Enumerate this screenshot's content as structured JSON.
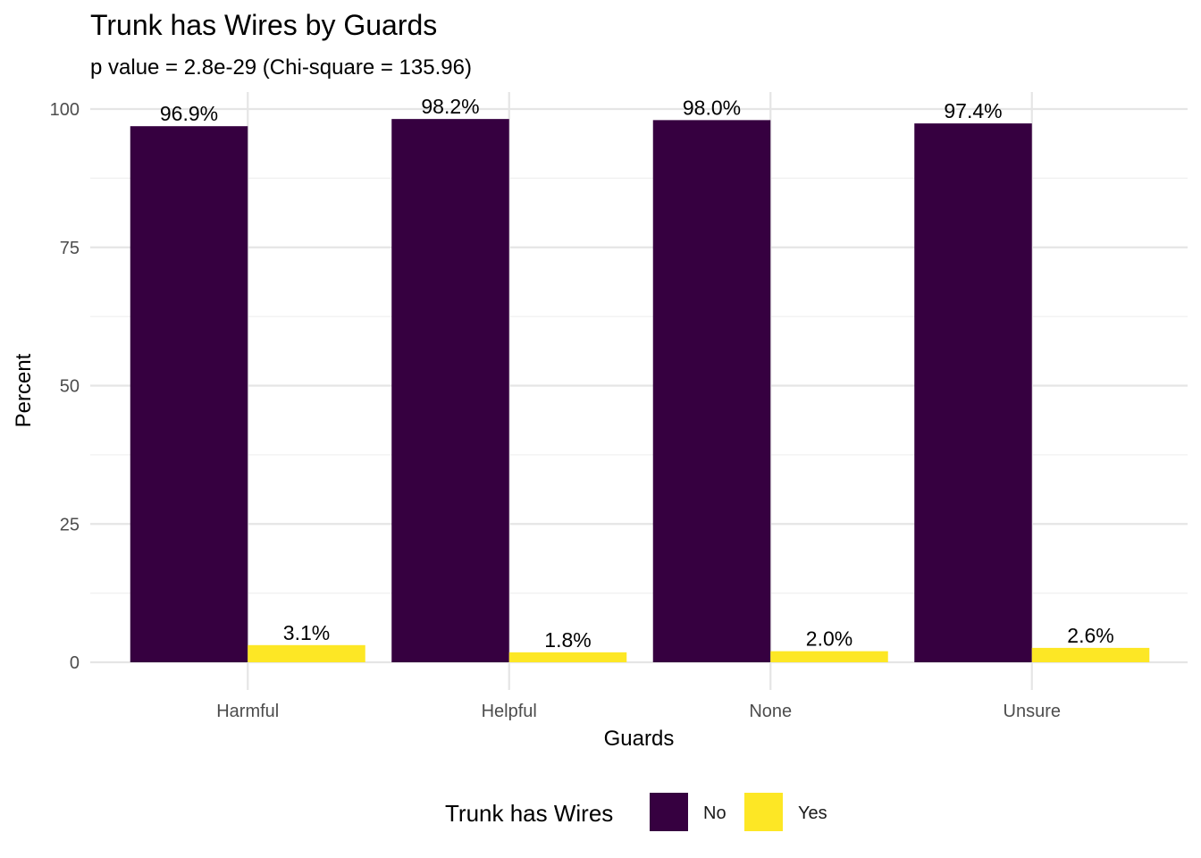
{
  "chart_data": {
    "type": "bar",
    "title": "Trunk has Wires by Guards",
    "subtitle": "p value = 2.8e-29 (Chi-square = 135.96)",
    "xlabel": "Guards",
    "ylabel": "Percent",
    "categories": [
      "Harmful",
      "Helpful",
      "None",
      "Unsure"
    ],
    "series": [
      {
        "name": "No",
        "color": "#360040",
        "values": [
          96.9,
          98.2,
          98.0,
          97.4
        ],
        "labels": [
          "96.9%",
          "98.2%",
          "98.0%",
          "97.4%"
        ]
      },
      {
        "name": "Yes",
        "color": "#fde725",
        "values": [
          3.1,
          1.8,
          2.0,
          2.6
        ],
        "labels": [
          "3.1%",
          "1.8%",
          "2.0%",
          "2.6%"
        ]
      }
    ],
    "ylim": [
      0,
      100
    ],
    "yticks": [
      0,
      25,
      50,
      75,
      100
    ],
    "yticklabels": [
      "0",
      "25",
      "50",
      "75",
      "100"
    ],
    "grid": true,
    "legend": {
      "title": "Trunk has Wires",
      "position": "bottom"
    }
  }
}
